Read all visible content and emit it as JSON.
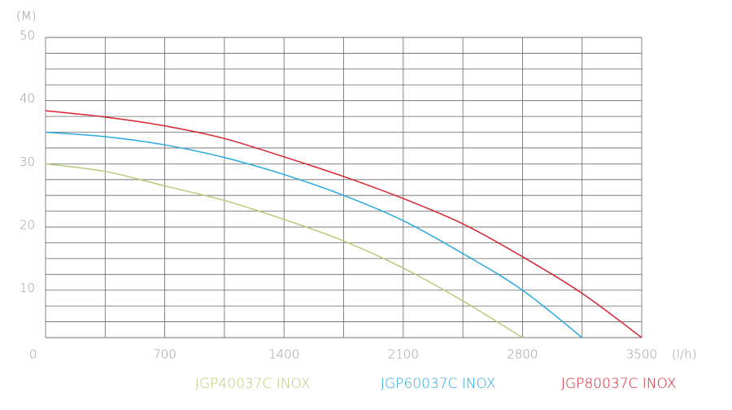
{
  "chart_data": {
    "type": "line",
    "y_unit_label": "(M)",
    "x_unit_label": "(l/h)",
    "x": [
      0,
      350,
      700,
      1050,
      1400,
      1750,
      2100,
      2450,
      2800,
      3150,
      3500
    ],
    "series": [
      {
        "name": "JGP40037C INOX",
        "color": "#b5cc7a",
        "values": [
          30,
          28.8,
          26.5,
          24.2,
          21.2,
          17.8,
          13.5,
          8.3,
          2.5,
          null,
          null
        ]
      },
      {
        "name": "JGP60037C INOX",
        "color": "#29a9e0",
        "values": [
          35,
          34.3,
          33,
          31,
          28.3,
          25,
          21,
          15.8,
          10,
          2.5,
          null
        ]
      },
      {
        "name": "JGP80037C INOX",
        "color": "#d7242f",
        "values": [
          38.4,
          37.4,
          36,
          34,
          31.1,
          28,
          24.5,
          20.5,
          15.3,
          9.5,
          2.5
        ]
      }
    ],
    "xlim": [
      0,
      3500
    ],
    "xticks": [
      0,
      700,
      1400,
      2100,
      2800,
      3500
    ],
    "minor_xticks": [
      350,
      1050,
      1750,
      2450,
      3150
    ],
    "ylim": [
      2.5,
      50
    ],
    "yticks": [
      10,
      20,
      30,
      40,
      50
    ],
    "minor_yticks": [
      2.5,
      5,
      7.5,
      12.5,
      15,
      17.5,
      22.5,
      25,
      27.5,
      32.5,
      35,
      37.5,
      42.5,
      45,
      47.5
    ],
    "grid": true
  }
}
